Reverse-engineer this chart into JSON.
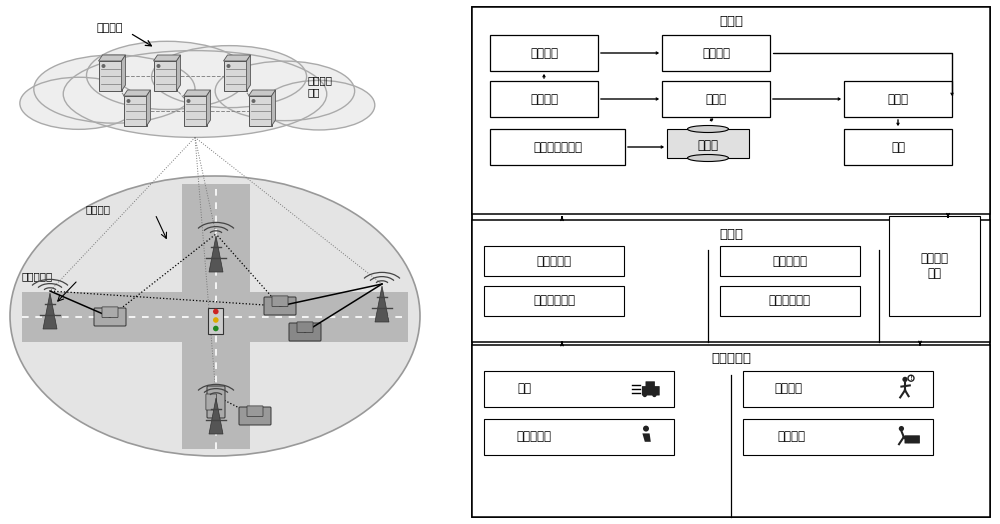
{
  "bg_color": "#ffffff",
  "left_panel": {
    "cloud_label": "数字孪生",
    "cloud_sublabel": "边缘云服\n务器",
    "fronthaul_label": "前端链路",
    "access_label": "无线接入点"
  },
  "right_panel": {
    "app_layer_title": "应用层",
    "transport_layer_title": "传输层",
    "sensing_layer_title": "车辆传感层",
    "boxes": {
      "model_build": "模型构建",
      "predict": "预测分析",
      "data_mine": "数据挖掘",
      "knowledge": "知识库",
      "optimal": "最优解",
      "data_clean": "数据清洗和融合",
      "database": "数据库",
      "decision": "决策",
      "single_bs": "单基站关联",
      "func_sleep1": "功能模块休眠",
      "multi_bs": "多基站关联",
      "func_sleep2": "功能模块休眠",
      "trans_power": "传输功率\n分配",
      "speed": "车速",
      "driver": "驾驶员状态",
      "slow": "减速慢行",
      "evade": "躲避行人"
    }
  }
}
